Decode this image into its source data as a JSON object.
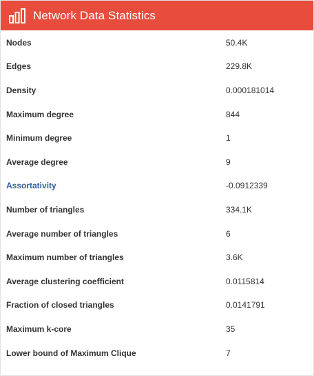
{
  "header": {
    "title": "Network Data Statistics",
    "background_color": "#e84c3d",
    "icon": "bar-chart-icon"
  },
  "stats": [
    {
      "label": "Nodes",
      "value": "50.4K",
      "link": false
    },
    {
      "label": "Edges",
      "value": "229.8K",
      "link": false
    },
    {
      "label": "Density",
      "value": "0.000181014",
      "link": false
    },
    {
      "label": "Maximum degree",
      "value": "844",
      "link": false
    },
    {
      "label": "Minimum degree",
      "value": "1",
      "link": false
    },
    {
      "label": "Average degree",
      "value": "9",
      "link": false
    },
    {
      "label": "Assortativity",
      "value": "-0.0912339",
      "link": true
    },
    {
      "label": "Number of triangles",
      "value": "334.1K",
      "link": false
    },
    {
      "label": "Average number of triangles",
      "value": "6",
      "link": false
    },
    {
      "label": "Maximum number of triangles",
      "value": "3.6K",
      "link": false
    },
    {
      "label": "Average clustering coefficient",
      "value": "0.0115814",
      "link": false
    },
    {
      "label": "Fraction of closed triangles",
      "value": "0.0141791",
      "link": false
    },
    {
      "label": "Maximum k-core",
      "value": "35",
      "link": false
    },
    {
      "label": "Lower bound of Maximum Clique",
      "value": "7",
      "link": false
    }
  ],
  "link_color": "#2f5f9e"
}
